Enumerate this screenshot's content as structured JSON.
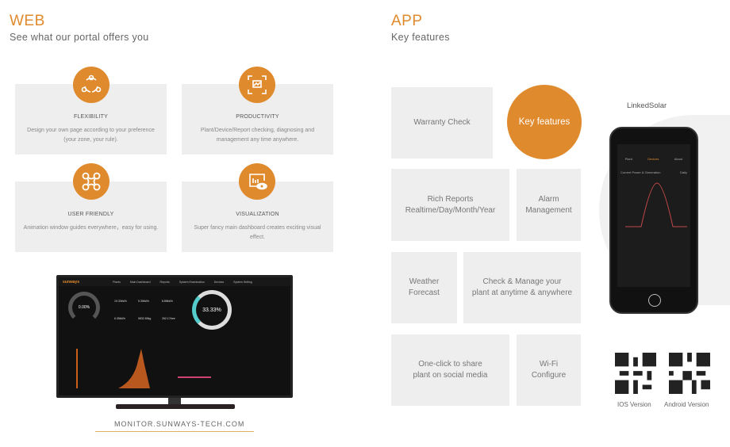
{
  "web": {
    "title": "WEB",
    "subtitle": "See what our portal offers you",
    "cards": [
      {
        "icon": "cycle-icon",
        "title": "FLEXIBILITY",
        "desc": "Design your own page according to your preference (your zone, your rule)."
      },
      {
        "icon": "monitor-scan-icon",
        "title": "PRODUCTIVITY",
        "desc": "Plant/Device/Report checking, diagnosing and management any time anywhere."
      },
      {
        "icon": "nodes-icon",
        "title": "USER FRIENDLY",
        "desc": "Animation window guides everywhere，easy for using."
      },
      {
        "icon": "chart-eye-icon",
        "title": "VISUALIZATION",
        "desc": "Super fancy main dashboard creates exciting visual effect."
      }
    ],
    "dashboard": {
      "logo": "sunways",
      "nav": [
        "Plants",
        "Main Dashboard",
        "Reports",
        "System Examination",
        "Devices",
        "System Setting"
      ],
      "efficiency": "0.00%",
      "ratio": "33.33%",
      "stats": [
        "19.33kWh",
        "5.35kWh",
        "8.88kWh",
        "6.35kWh",
        "9832.80kg",
        "262.17tree"
      ]
    },
    "url": "MONITOR.SUNWAYS-TECH.COM"
  },
  "app": {
    "title": "APP",
    "subtitle": "Key features",
    "center": "Key features",
    "features": [
      "Warranty Check",
      "Rich Reports\nRealtime/Day/Month/Year",
      "Alarm\nManagement",
      "Weather\nForecast",
      "Check & Manage your\nplant at anytime & anywhere",
      "One-click to share\nplant on social media",
      "Wi-Fi\nConfigure"
    ],
    "phone_label": "LinkedSolar",
    "phone": {
      "tabs": [
        "Plant",
        "Devices",
        "About"
      ],
      "selector": "Current Power & Generation",
      "period": "Daily"
    },
    "qr": [
      "IOS Version",
      "Android Version"
    ]
  },
  "colors": {
    "accent": "#e08a2e",
    "card": "#eeeeee"
  }
}
